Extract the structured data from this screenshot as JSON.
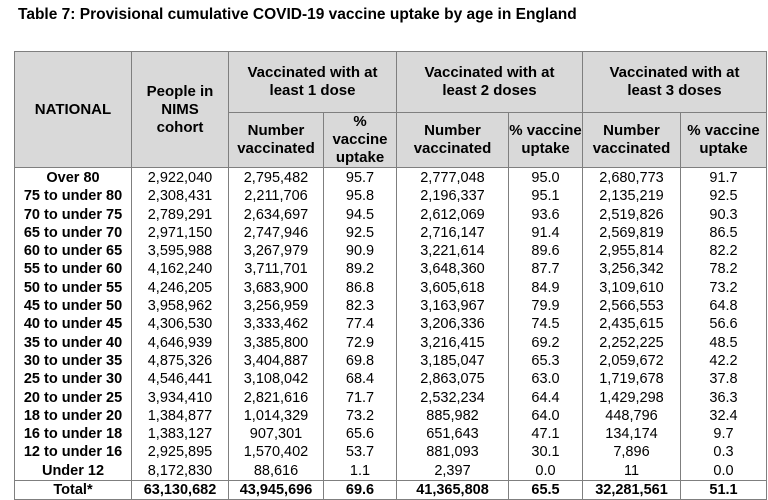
{
  "title": "Table 7: Provisional cumulative COVID-19 vaccine uptake by age in England",
  "headers": {
    "national": "NATIONAL",
    "cohort": "People in NIMS cohort",
    "dose1": "Vaccinated with at least 1 dose",
    "dose2": "Vaccinated with at least 2 doses",
    "dose3": "Vaccinated with at least 3 doses",
    "number": "Number vaccinated",
    "pct": "% vaccine uptake"
  },
  "rows": [
    [
      "Over 80",
      "2,922,040",
      "2,795,482",
      "95.7",
      "2,777,048",
      "95.0",
      "2,680,773",
      "91.7"
    ],
    [
      "75 to under 80",
      "2,308,431",
      "2,211,706",
      "95.8",
      "2,196,337",
      "95.1",
      "2,135,219",
      "92.5"
    ],
    [
      "70 to under 75",
      "2,789,291",
      "2,634,697",
      "94.5",
      "2,612,069",
      "93.6",
      "2,519,826",
      "90.3"
    ],
    [
      "65 to under 70",
      "2,971,150",
      "2,747,946",
      "92.5",
      "2,716,147",
      "91.4",
      "2,569,819",
      "86.5"
    ],
    [
      "60 to under 65",
      "3,595,988",
      "3,267,979",
      "90.9",
      "3,221,614",
      "89.6",
      "2,955,814",
      "82.2"
    ],
    [
      "55 to under 60",
      "4,162,240",
      "3,711,701",
      "89.2",
      "3,648,360",
      "87.7",
      "3,256,342",
      "78.2"
    ],
    [
      "50 to under 55",
      "4,246,205",
      "3,683,900",
      "86.8",
      "3,605,618",
      "84.9",
      "3,109,610",
      "73.2"
    ],
    [
      "45 to under 50",
      "3,958,962",
      "3,256,959",
      "82.3",
      "3,163,967",
      "79.9",
      "2,566,553",
      "64.8"
    ],
    [
      "40 to under 45",
      "4,306,530",
      "3,333,462",
      "77.4",
      "3,206,336",
      "74.5",
      "2,435,615",
      "56.6"
    ],
    [
      "35 to under 40",
      "4,646,939",
      "3,385,800",
      "72.9",
      "3,216,415",
      "69.2",
      "2,252,225",
      "48.5"
    ],
    [
      "30 to under 35",
      "4,875,326",
      "3,404,887",
      "69.8",
      "3,185,047",
      "65.3",
      "2,059,672",
      "42.2"
    ],
    [
      "25 to under 30",
      "4,546,441",
      "3,108,042",
      "68.4",
      "2,863,075",
      "63.0",
      "1,719,678",
      "37.8"
    ],
    [
      "20 to under 25",
      "3,934,410",
      "2,821,616",
      "71.7",
      "2,532,234",
      "64.4",
      "1,429,298",
      "36.3"
    ],
    [
      "18 to under 20",
      "1,384,877",
      "1,014,329",
      "73.2",
      "885,982",
      "64.0",
      "448,796",
      "32.4"
    ],
    [
      "16 to under 18",
      "1,383,127",
      "907,301",
      "65.6",
      "651,643",
      "47.1",
      "134,174",
      "9.7"
    ],
    [
      "12 to under 16",
      "2,925,895",
      "1,570,402",
      "53.7",
      "881,093",
      "30.1",
      "7,896",
      "0.3"
    ],
    [
      "Under 12",
      "8,172,830",
      "88,616",
      "1.1",
      "2,397",
      "0.0",
      "11",
      "0.0"
    ]
  ],
  "total": [
    "Total*",
    "63,130,682",
    "43,945,696",
    "69.6",
    "41,365,808",
    "65.5",
    "32,281,561",
    "51.1"
  ]
}
